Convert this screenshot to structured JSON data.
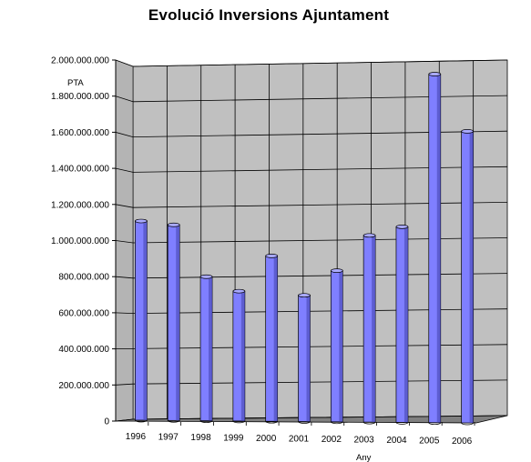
{
  "chart_data": {
    "type": "bar",
    "title": "Evolució Inversions Ajuntament",
    "ylabel": "PTA",
    "xlabel": "Any",
    "ylim": [
      0,
      2000000000
    ],
    "yticks": [
      0,
      200000000,
      400000000,
      600000000,
      800000000,
      1000000000,
      1200000000,
      1400000000,
      1600000000,
      1800000000,
      2000000000
    ],
    "ytick_labels": [
      "0",
      "200.000.000",
      "400.000.000",
      "600.000.000",
      "800.000.000",
      "1.000.000.000",
      "1.200.000.000",
      "1.400.000.000",
      "1.600.000.000",
      "1.800.000.000",
      "2.000.000.000"
    ],
    "categories": [
      "1996",
      "1997",
      "1998",
      "1999",
      "2000",
      "2001",
      "2002",
      "2003",
      "2004",
      "2005",
      "2006"
    ],
    "values": [
      1120000000,
      1100000000,
      810000000,
      730000000,
      930000000,
      710000000,
      850000000,
      1050000000,
      1100000000,
      1960000000,
      1640000000
    ],
    "grid": true,
    "colors": {
      "bar_front": "#7f7fff",
      "bar_side": "#4b4bb8",
      "bar_top": "#aaaaff",
      "back_wall": "#c0c0c0",
      "floor": "#808080",
      "gridline": "#000000"
    }
  }
}
